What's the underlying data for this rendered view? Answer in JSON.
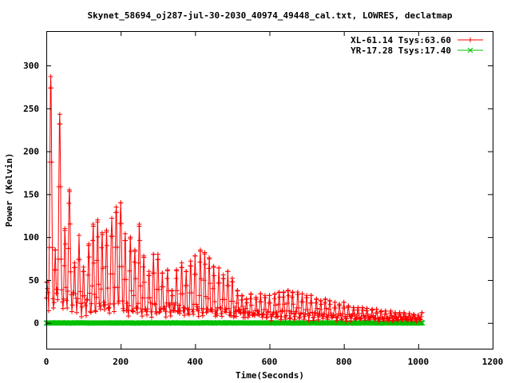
{
  "chart_data": {
    "type": "line",
    "title": "Skynet_58694_oj287-jul-30-2030_40974_49448_cal.txt, LOWRES, declatmap",
    "xlabel": "Time(Seconds)",
    "ylabel": "Power (Kelvin)",
    "xlim": [
      0,
      1200
    ],
    "ylim": [
      -30,
      340
    ],
    "xticks": [
      0,
      200,
      400,
      600,
      800,
      1000,
      1200
    ],
    "yticks": [
      0,
      50,
      100,
      150,
      200,
      250,
      300
    ],
    "grid": false,
    "legend_position": "top-right",
    "series": [
      {
        "name": "XL-61.14 Tsys:63.60",
        "color": "#ff0000",
        "marker": "plus",
        "x_range": [
          0,
          1010
        ],
        "sample_interval": 1.6,
        "scan_period": 12.6,
        "scan_peaks": [
          [
            2,
            48
          ],
          [
            12,
            287
          ],
          [
            24,
            85
          ],
          [
            36,
            243
          ],
          [
            50,
            110
          ],
          [
            62,
            155
          ],
          [
            76,
            70
          ],
          [
            88,
            102
          ],
          [
            100,
            65
          ],
          [
            114,
            92
          ],
          [
            126,
            115
          ],
          [
            138,
            120
          ],
          [
            150,
            105
          ],
          [
            162,
            108
          ],
          [
            176,
            122
          ],
          [
            188,
            135
          ],
          [
            200,
            140
          ],
          [
            212,
            104
          ],
          [
            226,
            100
          ],
          [
            238,
            85
          ],
          [
            250,
            115
          ],
          [
            262,
            78
          ],
          [
            276,
            60
          ],
          [
            288,
            80
          ],
          [
            300,
            80
          ],
          [
            312,
            58
          ],
          [
            326,
            62
          ],
          [
            338,
            38
          ],
          [
            350,
            62
          ],
          [
            364,
            70
          ],
          [
            376,
            60
          ],
          [
            388,
            72
          ],
          [
            400,
            78
          ],
          [
            414,
            85
          ],
          [
            426,
            82
          ],
          [
            438,
            76
          ],
          [
            450,
            66
          ],
          [
            464,
            64
          ],
          [
            476,
            56
          ],
          [
            488,
            60
          ],
          [
            500,
            52
          ],
          [
            514,
            38
          ],
          [
            526,
            32
          ],
          [
            538,
            28
          ],
          [
            550,
            34
          ],
          [
            564,
            30
          ],
          [
            576,
            34
          ],
          [
            588,
            32
          ],
          [
            600,
            32
          ],
          [
            614,
            34
          ],
          [
            626,
            36
          ],
          [
            638,
            36
          ],
          [
            650,
            38
          ],
          [
            662,
            36
          ],
          [
            676,
            36
          ],
          [
            688,
            34
          ],
          [
            700,
            32
          ],
          [
            712,
            32
          ],
          [
            726,
            28
          ],
          [
            738,
            26
          ],
          [
            750,
            28
          ],
          [
            762,
            26
          ],
          [
            776,
            24
          ],
          [
            788,
            22
          ],
          [
            800,
            24
          ],
          [
            812,
            20
          ],
          [
            826,
            18
          ],
          [
            838,
            18
          ],
          [
            850,
            18
          ],
          [
            862,
            17
          ],
          [
            876,
            16
          ],
          [
            888,
            16
          ],
          [
            900,
            14
          ],
          [
            912,
            14
          ],
          [
            926,
            14
          ],
          [
            938,
            12
          ],
          [
            950,
            12
          ],
          [
            962,
            12
          ],
          [
            976,
            11
          ],
          [
            988,
            10
          ],
          [
            1000,
            9
          ],
          [
            1010,
            12
          ]
        ]
      },
      {
        "name": "YR-17.28 Tsys:17.40",
        "color": "#00c000",
        "marker": "cross",
        "x_range": [
          0,
          1012
        ],
        "sample_interval": 1.6,
        "level": 0
      }
    ]
  }
}
